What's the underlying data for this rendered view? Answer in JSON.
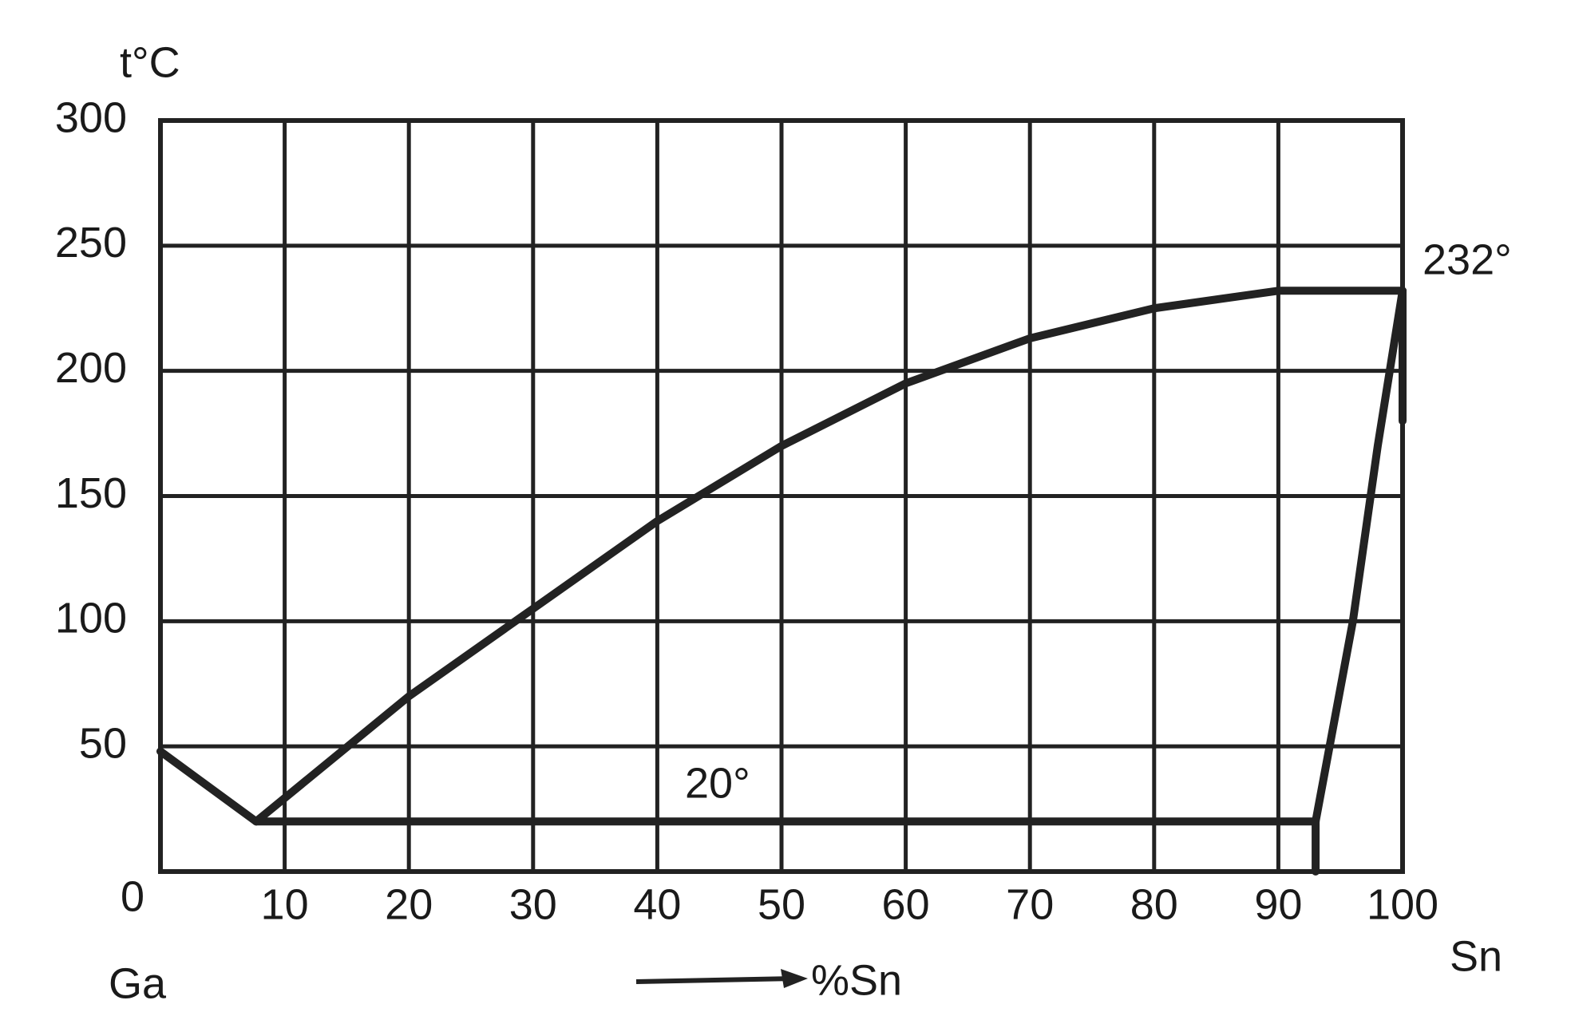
{
  "chart_data": {
    "type": "line",
    "x_label": "%Sn",
    "y_label": "t°C",
    "annotations": [
      "232°",
      "20°",
      "Ga",
      "Sn"
    ],
    "xlim": [
      0,
      100
    ],
    "ylim": [
      0,
      300
    ],
    "xticks": [
      0,
      10,
      20,
      30,
      40,
      50,
      60,
      70,
      80,
      90,
      100
    ],
    "yticks": [
      50,
      100,
      150,
      200,
      250,
      300
    ],
    "grid": true,
    "series": [
      {
        "color": "#222222",
        "x": [
          0,
          7.7
        ],
        "values": [
          48,
          20
        ]
      },
      {
        "color": "#222222",
        "x": [
          7.7,
          20,
          30,
          40,
          50,
          60,
          70,
          80,
          90,
          100
        ],
        "values": [
          20,
          70,
          105,
          140,
          170,
          195,
          213,
          225,
          232,
          232
        ]
      },
      {
        "color": "#222222",
        "x": [
          7.7,
          93
        ],
        "values": [
          20,
          20
        ]
      },
      {
        "color": "#222222",
        "x": [
          93,
          96,
          98,
          100
        ],
        "values": [
          20,
          100,
          170,
          232
        ]
      },
      {
        "color": "#222222",
        "x": [
          93,
          93
        ],
        "values": [
          20,
          0
        ]
      },
      {
        "color": "#222222",
        "x": [
          100,
          100
        ],
        "values": [
          232,
          180
        ]
      }
    ]
  }
}
